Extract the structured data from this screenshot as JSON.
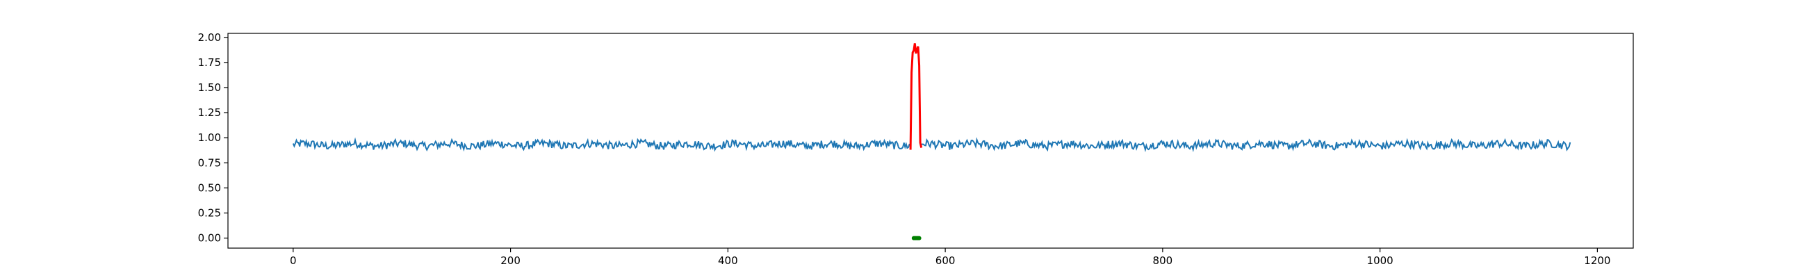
{
  "chart_data": {
    "type": "line",
    "title": "",
    "xlabel": "",
    "ylabel": "",
    "xlim": [
      -60,
      1233
    ],
    "ylim": [
      -0.1,
      2.04
    ],
    "xticks": [
      0,
      200,
      400,
      600,
      800,
      1000,
      1200
    ],
    "xtick_labels": [
      "0",
      "200",
      "400",
      "600",
      "800",
      "1000",
      "1200"
    ],
    "yticks": [
      0.0,
      0.25,
      0.5,
      0.75,
      1.0,
      1.25,
      1.5,
      1.75,
      2.0
    ],
    "ytick_labels": [
      "0.00",
      "0.25",
      "0.50",
      "0.75",
      "1.00",
      "1.25",
      "1.50",
      "1.75",
      "2.00"
    ],
    "grid": false,
    "legend": "none",
    "series": [
      {
        "color": "#1f77b4",
        "x_range": [
          0,
          1175
        ],
        "baseline": 0.93,
        "noise_amplitude": 0.04,
        "gap": [
          568,
          578
        ],
        "style": "line"
      },
      {
        "color": "#ff0000",
        "x": [
          568,
          569,
          570,
          571,
          572,
          573,
          574,
          575,
          576,
          577,
          578
        ],
        "y": [
          0.88,
          1.65,
          1.85,
          1.87,
          1.94,
          1.84,
          1.88,
          1.91,
          1.72,
          0.95,
          0.9
        ],
        "style": "line"
      },
      {
        "color": "#008000",
        "x": [
          571,
          572,
          573,
          574,
          575,
          576
        ],
        "y": [
          0,
          0,
          0,
          0,
          0,
          0
        ],
        "style": "markers"
      }
    ]
  }
}
